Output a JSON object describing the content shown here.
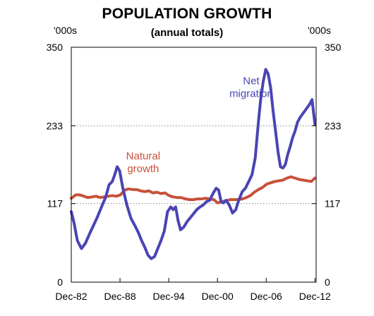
{
  "chart_data": {
    "type": "line",
    "title": "POPULATION GROWTH",
    "subtitle": "(annual totals)",
    "unit_left": "'000s",
    "unit_right": "'000s",
    "ylim": [
      0,
      350
    ],
    "yticks": [
      "0",
      "117",
      "233",
      "350"
    ],
    "ytick_values": [
      0,
      117,
      233,
      350
    ],
    "xlim": [
      1982.95,
      2013.1
    ],
    "xticks": [
      "Dec-82",
      "Dec-88",
      "Dec-94",
      "Dec-00",
      "Dec-06",
      "Dec-12"
    ],
    "xtick_values": [
      1982.95,
      1988.95,
      1994.95,
      2000.95,
      2006.95,
      2012.95
    ],
    "grid": "horizontal dotted at 117 and 233",
    "series": [
      {
        "name": "Net migration",
        "label": [
          "Net",
          "migration"
        ],
        "color": "#4a44b5",
        "x": [
          1982.95,
          1983.3,
          1983.7,
          1984.2,
          1984.7,
          1985.2,
          1985.7,
          1986.2,
          1986.7,
          1987.2,
          1987.6,
          1988.0,
          1988.3,
          1988.6,
          1988.9,
          1989.3,
          1989.8,
          1990.3,
          1990.8,
          1991.2,
          1991.6,
          1992.0,
          1992.4,
          1992.8,
          1993.2,
          1993.6,
          1994.0,
          1994.4,
          1994.8,
          1995.2,
          1995.5,
          1995.8,
          1996.1,
          1996.4,
          1996.8,
          1997.2,
          1997.6,
          1998.0,
          1998.4,
          1998.8,
          1999.2,
          1999.6,
          2000.0,
          2000.4,
          2000.8,
          2001.1,
          2001.4,
          2001.7,
          2002.0,
          2002.4,
          2002.8,
          2003.2,
          2003.6,
          2004.0,
          2004.4,
          2004.8,
          2005.2,
          2005.6,
          2006.0,
          2006.3,
          2006.6,
          2006.9,
          2007.2,
          2007.5,
          2007.8,
          2008.1,
          2008.4,
          2008.7,
          2009.0,
          2009.3,
          2009.6,
          2009.9,
          2010.2,
          2010.5,
          2010.8,
          2011.1,
          2011.4,
          2011.7,
          2012.0,
          2012.3,
          2012.6,
          2012.95
        ],
        "values": [
          105,
          88,
          62,
          50,
          58,
          72,
          85,
          98,
          113,
          127,
          145,
          150,
          160,
          172,
          166,
          140,
          115,
          95,
          84,
          74,
          62,
          52,
          40,
          35,
          38,
          50,
          62,
          76,
          105,
          112,
          108,
          112,
          92,
          78,
          82,
          90,
          96,
          102,
          108,
          112,
          115,
          120,
          122,
          132,
          140,
          137,
          120,
          118,
          122,
          115,
          103,
          108,
          123,
          135,
          140,
          150,
          160,
          185,
          240,
          275,
          300,
          317,
          310,
          290,
          255,
          225,
          195,
          172,
          170,
          175,
          190,
          202,
          215,
          225,
          238,
          245,
          250,
          255,
          260,
          265,
          272,
          235
        ],
        "label_x": 2005.1,
        "label_y": 295
      },
      {
        "name": "Natural growth",
        "label": [
          "Natural",
          "growth"
        ],
        "color": "#c8513b",
        "x": [
          1982.95,
          1983.5,
          1984.0,
          1984.5,
          1985.0,
          1985.5,
          1986.0,
          1986.5,
          1987.0,
          1987.5,
          1988.0,
          1988.5,
          1989.0,
          1989.5,
          1990.0,
          1990.5,
          1991.0,
          1991.5,
          1992.0,
          1992.5,
          1993.0,
          1993.5,
          1994.0,
          1994.5,
          1995.0,
          1995.5,
          1996.0,
          1996.5,
          1997.0,
          1997.5,
          1998.0,
          1998.5,
          1999.0,
          1999.5,
          2000.0,
          2000.5,
          2001.0,
          2001.5,
          2002.0,
          2002.5,
          2003.0,
          2003.5,
          2004.0,
          2004.5,
          2005.0,
          2005.5,
          2006.0,
          2006.5,
          2007.0,
          2007.5,
          2008.0,
          2008.5,
          2009.0,
          2009.5,
          2010.0,
          2010.5,
          2011.0,
          2011.5,
          2012.0,
          2012.5,
          2012.95
        ],
        "values": [
          125,
          130,
          130,
          128,
          126,
          127,
          128,
          126,
          127,
          128,
          129,
          128,
          130,
          137,
          139,
          138,
          138,
          136,
          135,
          136,
          133,
          134,
          132,
          133,
          129,
          127,
          126,
          126,
          124,
          123,
          123,
          124,
          124,
          125,
          124,
          123,
          118,
          120,
          121,
          123,
          123,
          123,
          124,
          126,
          129,
          134,
          138,
          141,
          146,
          148,
          150,
          151,
          152,
          155,
          157,
          155,
          153,
          152,
          151,
          150,
          155
        ],
        "label_x": 1991.8,
        "label_y": 183
      }
    ]
  }
}
